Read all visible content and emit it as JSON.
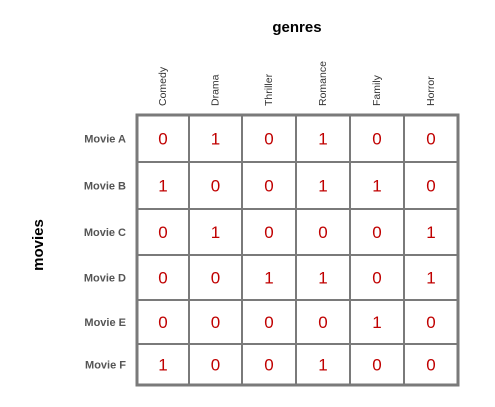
{
  "column_title": "genres",
  "row_title": "movies",
  "columns": [
    "Comedy",
    "Drama",
    "Thriller",
    "Romance",
    "Family",
    "Horror"
  ],
  "rows": [
    {
      "label": "Movie A",
      "values": [
        "0",
        "1",
        "0",
        "1",
        "0",
        "0"
      ]
    },
    {
      "label": "Movie B",
      "values": [
        "1",
        "0",
        "0",
        "1",
        "1",
        "0"
      ]
    },
    {
      "label": "Movie C",
      "values": [
        "0",
        "1",
        "0",
        "0",
        "0",
        "1"
      ]
    },
    {
      "label": "Movie D",
      "values": [
        "0",
        "0",
        "1",
        "1",
        "0",
        "1"
      ]
    },
    {
      "label": "Movie E",
      "values": [
        "0",
        "0",
        "0",
        "0",
        "1",
        "0"
      ]
    },
    {
      "label": "Movie F",
      "values": [
        "1",
        "0",
        "0",
        "1",
        "0",
        "0"
      ]
    }
  ],
  "colors": {
    "value_text": "#c00000",
    "grid_line": "#7a7a7a"
  }
}
